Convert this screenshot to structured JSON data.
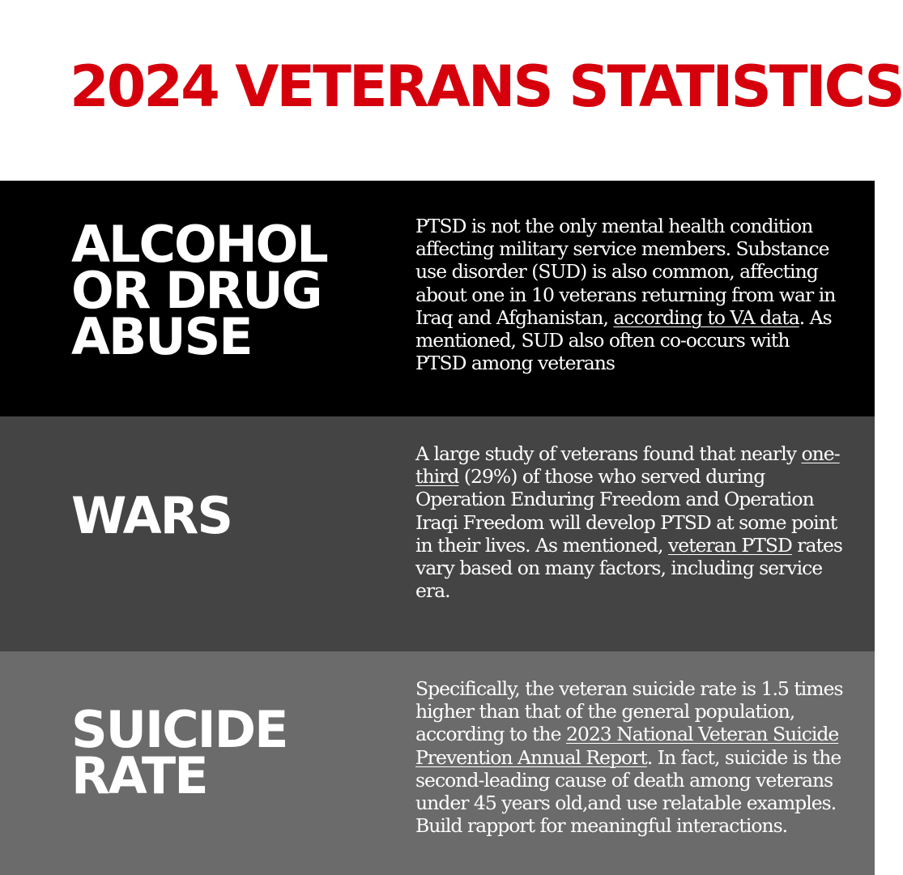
{
  "title": "2024 VETERANS STATISTICS",
  "sections": [
    {
      "heading_lines": [
        "ALCOHOL",
        "OR DRUG",
        "ABUSE"
      ],
      "text_before_link": "PTSD is not the only mental health condition affecting military service members. Substance use disorder (SUD) is also common, affecting about one in 10 veterans returning from war in Iraq and Afghanistan, ",
      "link": "according to VA data",
      "text_after_link": ". As mentioned, SUD also often co-occurs with PTSD among veterans",
      "colors": {
        "background": "#000000"
      }
    },
    {
      "heading_lines": [
        "WARS"
      ],
      "text_1": "A large study of veterans found that nearly ",
      "link_1": "one-third",
      "text_2": " (29%) of those who served during Operation Enduring Freedom and Operation Iraqi Freedom will develop PTSD at some point in their lives. As mentioned, ",
      "link_2": "veteran PTSD",
      "text_3": " rates vary based on many factors, including service era.",
      "colors": {
        "background": "#444444"
      }
    },
    {
      "heading_lines": [
        "SUICIDE",
        "RATE"
      ],
      "text_before_link": "Specifically, the veteran suicide rate is 1.5 times higher than that of the general population, according to the ",
      "link": "2023 National Veteran Suicide Prevention Annual Report",
      "text_after_link": ". In fact, suicide is the second-leading cause of death among veterans under 45 years old,and use relatable examples. Build rapport for meaningful interactions.",
      "colors": {
        "background": "#6b6b6b"
      }
    }
  ],
  "colors": {
    "title": "#d6000c",
    "text": "#ffffff"
  }
}
